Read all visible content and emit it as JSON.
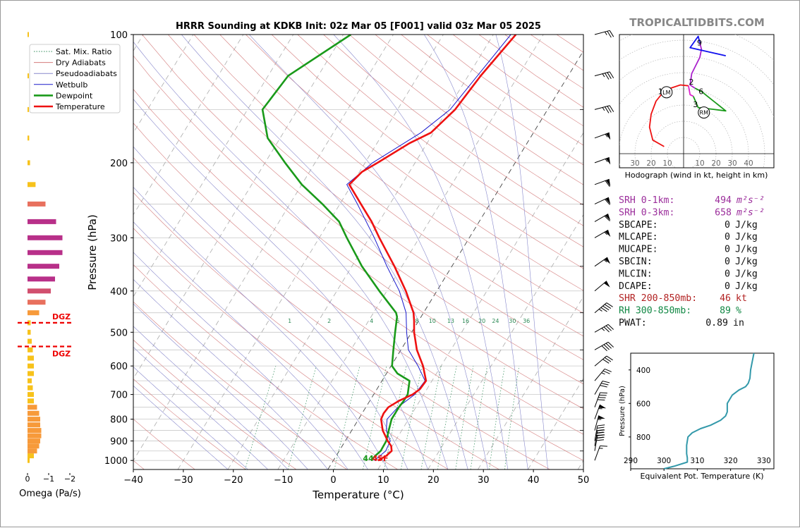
{
  "title": "HRRR Sounding at KDKB Init: 02z Mar 05 [F001] valid 03z Mar 05 2025",
  "watermark": "TROPICALTIDBITS.COM",
  "chart_data": [
    {
      "type": "line",
      "name": "skew-t",
      "xlabel": "Temperature (°C)",
      "ylabel": "Pressure (hPa)",
      "xlim": [
        -40,
        50
      ],
      "ylim": [
        1050,
        100
      ],
      "log_y": true,
      "skew": true,
      "x_ticks": [
        -40,
        -30,
        -20,
        -10,
        0,
        10,
        20,
        30,
        40,
        50
      ],
      "y_ticks": [
        100,
        200,
        300,
        400,
        500,
        600,
        700,
        800,
        900,
        1000
      ],
      "legend": {
        "placement": "top-left",
        "items": [
          {
            "label": "Sat. Mix. Ratio",
            "color": "#2e8b57",
            "style": "dotted"
          },
          {
            "label": "Dry Adiabats",
            "color": "#d47c7c",
            "style": "solid"
          },
          {
            "label": "Pseudoadiabats",
            "color": "#8888cc",
            "style": "solid"
          },
          {
            "label": "Wetbulb",
            "color": "#1a1acc",
            "style": "solid"
          },
          {
            "label": "Dewpoint",
            "color": "#1a9a1a",
            "style": "bold"
          },
          {
            "label": "Temperature",
            "color": "#ee1111",
            "style": "bold"
          }
        ]
      },
      "mixing_ratio_labels": [
        "1",
        "2",
        "4",
        "6",
        "8",
        "10",
        "13",
        "16",
        "20",
        "24",
        "30",
        "36"
      ],
      "sfc_temp_label": "45F",
      "sfc_dew_label": "44",
      "series": [
        {
          "name": "Temperature",
          "color": "#ee1111",
          "points": [
            [
              1000,
              8.9
            ],
            [
              975,
              10
            ],
            [
              950,
              10.5
            ],
            [
              925,
              9.8
            ],
            [
              900,
              8.5
            ],
            [
              850,
              6.2
            ],
            [
              800,
              4.5
            ],
            [
              775,
              4.3
            ],
            [
              750,
              4.5
            ],
            [
              725,
              5.8
            ],
            [
              700,
              7.8
            ],
            [
              680,
              8.6
            ],
            [
              650,
              8.8
            ],
            [
              600,
              6.4
            ],
            [
              550,
              3.2
            ],
            [
              500,
              0.5
            ],
            [
              470,
              -0.9
            ],
            [
              450,
              -2
            ],
            [
              400,
              -6.2
            ],
            [
              350,
              -11.5
            ],
            [
              300,
              -18
            ],
            [
              275,
              -21.5
            ],
            [
              250,
              -25.8
            ],
            [
              225,
              -30.5
            ],
            [
              210,
              -29.5
            ],
            [
              200,
              -27.5
            ],
            [
              180,
              -23.5
            ],
            [
              170,
              -20.5
            ],
            [
              150,
              -18.5
            ],
            [
              125,
              -17.5
            ],
            [
              100,
              -15.5
            ]
          ]
        },
        {
          "name": "Dewpoint",
          "color": "#1a9a1a",
          "points": [
            [
              1000,
              7.6
            ],
            [
              975,
              7.8
            ],
            [
              950,
              8.3
            ],
            [
              900,
              8.2
            ],
            [
              850,
              7.4
            ],
            [
              800,
              6.6
            ],
            [
              750,
              6.6
            ],
            [
              725,
              6.8
            ],
            [
              700,
              6.8
            ],
            [
              650,
              5.5
            ],
            [
              625,
              2.2
            ],
            [
              600,
              0.2
            ],
            [
              550,
              -1.5
            ],
            [
              500,
              -3.3
            ],
            [
              460,
              -4.8
            ],
            [
              450,
              -5.5
            ],
            [
              400,
              -11.5
            ],
            [
              350,
              -18
            ],
            [
              300,
              -24.5
            ],
            [
              275,
              -28
            ],
            [
              250,
              -33.5
            ],
            [
              225,
              -40
            ],
            [
              200,
              -46
            ],
            [
              175,
              -52.5
            ],
            [
              150,
              -57
            ],
            [
              125,
              -56
            ],
            [
              100,
              -48.5
            ]
          ]
        },
        {
          "name": "Wetbulb",
          "color": "#1a1acc",
          "points": [
            [
              1000,
              8.2
            ],
            [
              950,
              9.3
            ],
            [
              900,
              9.0
            ],
            [
              850,
              6.9
            ],
            [
              800,
              5.7
            ],
            [
              750,
              6.4
            ],
            [
              700,
              8.2
            ],
            [
              650,
              8.6
            ],
            [
              600,
              5.4
            ],
            [
              550,
              1.5
            ],
            [
              500,
              -1.0
            ],
            [
              450,
              -3.5
            ],
            [
              400,
              -7.5
            ],
            [
              350,
              -13
            ],
            [
              300,
              -19
            ],
            [
              250,
              -26.5
            ],
            [
              225,
              -31
            ],
            [
              200,
              -28.5
            ],
            [
              170,
              -22.5
            ],
            [
              150,
              -19.5
            ],
            [
              100,
              -16.5
            ]
          ]
        }
      ]
    },
    {
      "type": "bar",
      "name": "omega",
      "xlabel": "Omega (Pa/s)",
      "x_ticks": [
        "0",
        "−1",
        "−2"
      ],
      "dgz_label": "DGZ",
      "dgz_bounds_hpa": [
        475,
        540
      ],
      "bars": [
        {
          "p": 1000,
          "v": -0.1
        },
        {
          "p": 975,
          "v": -0.3
        },
        {
          "p": 950,
          "v": -0.45
        },
        {
          "p": 925,
          "v": -0.55
        },
        {
          "p": 900,
          "v": -0.6
        },
        {
          "p": 875,
          "v": -0.65
        },
        {
          "p": 850,
          "v": -0.65
        },
        {
          "p": 825,
          "v": -0.6
        },
        {
          "p": 800,
          "v": -0.6
        },
        {
          "p": 775,
          "v": -0.55
        },
        {
          "p": 750,
          "v": -0.45
        },
        {
          "p": 725,
          "v": -0.3
        },
        {
          "p": 700,
          "v": -0.3
        },
        {
          "p": 675,
          "v": -0.25
        },
        {
          "p": 650,
          "v": -0.2
        },
        {
          "p": 625,
          "v": -0.3
        },
        {
          "p": 600,
          "v": -0.3
        },
        {
          "p": 575,
          "v": -0.3
        },
        {
          "p": 550,
          "v": -0.25
        },
        {
          "p": 525,
          "v": -0.2
        },
        {
          "p": 500,
          "v": -0.15
        },
        {
          "p": 475,
          "v": -0.15
        },
        {
          "p": 450,
          "v": -0.55
        },
        {
          "p": 425,
          "v": -0.85
        },
        {
          "p": 400,
          "v": -1.1
        },
        {
          "p": 375,
          "v": -1.3
        },
        {
          "p": 350,
          "v": -1.5
        },
        {
          "p": 325,
          "v": -1.65
        },
        {
          "p": 300,
          "v": -1.65
        },
        {
          "p": 275,
          "v": -1.35
        },
        {
          "p": 250,
          "v": -0.85
        },
        {
          "p": 225,
          "v": -0.38
        },
        {
          "p": 200,
          "v": -0.12
        },
        {
          "p": 175,
          "v": -0.08
        },
        {
          "p": 150,
          "v": -0.05
        },
        {
          "p": 125,
          "v": -0.05
        },
        {
          "p": 100,
          "v": -0.05
        }
      ]
    },
    {
      "type": "line",
      "name": "hodograph",
      "xlabel": "Hodograph (wind in kt, height in km)",
      "axis_labels": [
        "30",
        "20",
        "10",
        "10",
        "20",
        "30",
        "40"
      ],
      "height_labels": [
        {
          "text": "1",
          "u": -14,
          "v": -9
        },
        {
          "text": "2",
          "u": 5,
          "v": -3
        },
        {
          "text": "3",
          "u": 7.5,
          "v": -17
        },
        {
          "text": "6",
          "u": 11,
          "v": -9
        },
        {
          "text": "9",
          "u": 10,
          "v": 21
        }
      ],
      "markers": [
        {
          "text": "LM",
          "u": -10.5,
          "v": -9.5
        },
        {
          "text": "RM",
          "u": 12.5,
          "v": -22
        }
      ],
      "segments": [
        {
          "color": "#ee1111",
          "points": [
            [
              -12,
              -43
            ],
            [
              -19,
              -39
            ],
            [
              -21,
              -31
            ],
            [
              -20,
              -23
            ],
            [
              -17,
              -15
            ],
            [
              -13,
              -10
            ],
            [
              -8,
              -7
            ],
            [
              -2,
              -5
            ],
            [
              3,
              -5.5
            ]
          ]
        },
        {
          "color": "#dd22cc",
          "points": [
            [
              3,
              -5.5
            ],
            [
              4,
              -11
            ],
            [
              6,
              -12
            ]
          ]
        },
        {
          "color": "#1a9a1a",
          "points": [
            [
              6,
              -12
            ],
            [
              9,
              -19
            ],
            [
              18,
              -20
            ],
            [
              26,
              -21
            ],
            [
              16,
              -13
            ],
            [
              11,
              -9
            ],
            [
              7,
              -7
            ]
          ]
        },
        {
          "color": "#aa22cc",
          "points": [
            [
              7,
              -7
            ],
            [
              4,
              -5
            ],
            [
              5,
              2
            ],
            [
              10,
              12
            ],
            [
              11,
              17
            ],
            [
              10,
              21
            ]
          ]
        },
        {
          "color": "#1111ee",
          "points": [
            [
              10,
              21
            ],
            [
              9,
              25
            ],
            [
              4,
              18
            ],
            [
              26,
              13
            ]
          ]
        }
      ]
    },
    {
      "type": "line",
      "name": "theta-e",
      "xlabel": "Equivalent Pot. Temperature (K)",
      "ylabel": "Pressure (hPa)",
      "x_ticks": [
        290,
        300,
        310,
        320,
        330
      ],
      "y_ticks": [
        400,
        600,
        800
      ],
      "xlim": [
        290,
        333
      ],
      "ylim": [
        990,
        300
      ],
      "color": "#3399aa",
      "points": [
        [
          990,
          300
        ],
        [
          975,
          303
        ],
        [
          950,
          307
        ],
        [
          925,
          307
        ],
        [
          900,
          306.8
        ],
        [
          850,
          306.8
        ],
        [
          800,
          307.2
        ],
        [
          775,
          308.5
        ],
        [
          750,
          311
        ],
        [
          730,
          314
        ],
        [
          700,
          317
        ],
        [
          675,
          318.5
        ],
        [
          650,
          319
        ],
        [
          600,
          319
        ],
        [
          550,
          320.5
        ],
        [
          520,
          322.5
        ],
        [
          500,
          324.5
        ],
        [
          480,
          325.3
        ],
        [
          450,
          325.8
        ],
        [
          400,
          326
        ],
        [
          350,
          326.5
        ],
        [
          300,
          327
        ]
      ]
    }
  ],
  "stats": [
    {
      "label": "SRH 0-1km:",
      "value": "494",
      "unit": "m²s⁻²",
      "color": "#9b2d9b"
    },
    {
      "label": "SRH 0-3km:",
      "value": "658",
      "unit": "m²s⁻²",
      "color": "#9b2d9b"
    },
    {
      "label": "SBCAPE:",
      "value": "0",
      "unit": "J/kg",
      "color": "#111111"
    },
    {
      "label": "MLCAPE:",
      "value": "0",
      "unit": "J/kg",
      "color": "#111111"
    },
    {
      "label": "MUCAPE:",
      "value": "0",
      "unit": "J/kg",
      "color": "#111111"
    },
    {
      "label": "SBCIN:",
      "value": "0",
      "unit": "J/kg",
      "color": "#111111"
    },
    {
      "label": "MLCIN:",
      "value": "0",
      "unit": "J/kg",
      "color": "#111111"
    },
    {
      "label": "DCAPE:",
      "value": "0",
      "unit": "J/kg",
      "color": "#111111"
    },
    {
      "label": "SHR 200-850mb:",
      "value": "46",
      "unit": "kt",
      "color": "#b22222"
    },
    {
      "label": "RH 300-850mb:",
      "value": "89",
      "unit": "%",
      "color": "#118844"
    },
    {
      "label": "PWAT:",
      "value": "0.89",
      "unit": "in",
      "color": "#111111"
    }
  ],
  "wind_barbs": [
    {
      "p": 1000,
      "spd": 15,
      "dir": 200
    },
    {
      "p": 950,
      "spd": 30,
      "dir": 190
    },
    {
      "p": 925,
      "spd": 40,
      "dir": 190
    },
    {
      "p": 900,
      "spd": 45,
      "dir": 190
    },
    {
      "p": 850,
      "spd": 55,
      "dir": 195
    },
    {
      "p": 800,
      "spd": 55,
      "dir": 200
    },
    {
      "p": 750,
      "spd": 40,
      "dir": 200
    },
    {
      "p": 700,
      "spd": 30,
      "dir": 210
    },
    {
      "p": 650,
      "spd": 25,
      "dir": 220
    },
    {
      "p": 600,
      "spd": 30,
      "dir": 230
    },
    {
      "p": 550,
      "spd": 40,
      "dir": 240
    },
    {
      "p": 500,
      "spd": 35,
      "dir": 240
    },
    {
      "p": 450,
      "spd": 45,
      "dir": 230
    },
    {
      "p": 400,
      "spd": 50,
      "dir": 230
    },
    {
      "p": 350,
      "spd": 55,
      "dir": 235
    },
    {
      "p": 300,
      "spd": 55,
      "dir": 240
    },
    {
      "p": 275,
      "spd": 60,
      "dir": 240
    },
    {
      "p": 250,
      "spd": 60,
      "dir": 245
    },
    {
      "p": 225,
      "spd": 60,
      "dir": 250
    },
    {
      "p": 200,
      "spd": 55,
      "dir": 250
    },
    {
      "p": 175,
      "spd": 55,
      "dir": 250
    },
    {
      "p": 150,
      "spd": 35,
      "dir": 255
    },
    {
      "p": 125,
      "spd": 35,
      "dir": 255
    },
    {
      "p": 100,
      "spd": 25,
      "dir": 255
    }
  ]
}
